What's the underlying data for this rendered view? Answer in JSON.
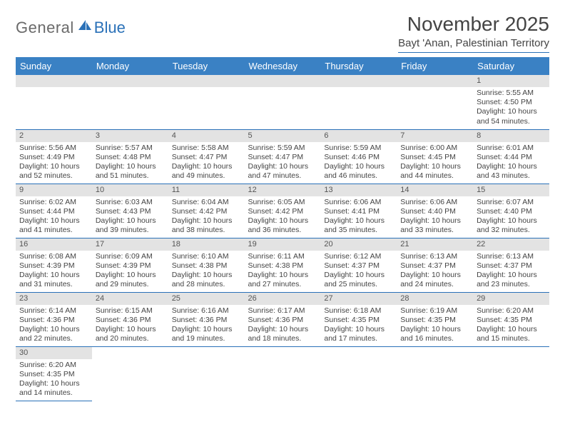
{
  "logo": {
    "main": "General",
    "sub": "Blue"
  },
  "header": {
    "title": "November 2025",
    "location": "Bayt 'Anan, Palestinian Territory"
  },
  "colors": {
    "header_bar": "#3a81c4",
    "rule": "#2a71b8",
    "daynum_bg": "#e3e3e3",
    "logo_gray": "#6a6a6a",
    "logo_blue": "#2a71b8"
  },
  "weekdays": [
    "Sunday",
    "Monday",
    "Tuesday",
    "Wednesday",
    "Thursday",
    "Friday",
    "Saturday"
  ],
  "grid": [
    [
      {
        "empty": true
      },
      {
        "empty": true
      },
      {
        "empty": true
      },
      {
        "empty": true
      },
      {
        "empty": true
      },
      {
        "empty": true
      },
      {
        "day": "1",
        "sunrise": "Sunrise: 5:55 AM",
        "sunset": "Sunset: 4:50 PM",
        "daylight": "Daylight: 10 hours and 54 minutes."
      }
    ],
    [
      {
        "day": "2",
        "sunrise": "Sunrise: 5:56 AM",
        "sunset": "Sunset: 4:49 PM",
        "daylight": "Daylight: 10 hours and 52 minutes."
      },
      {
        "day": "3",
        "sunrise": "Sunrise: 5:57 AM",
        "sunset": "Sunset: 4:48 PM",
        "daylight": "Daylight: 10 hours and 51 minutes."
      },
      {
        "day": "4",
        "sunrise": "Sunrise: 5:58 AM",
        "sunset": "Sunset: 4:47 PM",
        "daylight": "Daylight: 10 hours and 49 minutes."
      },
      {
        "day": "5",
        "sunrise": "Sunrise: 5:59 AM",
        "sunset": "Sunset: 4:47 PM",
        "daylight": "Daylight: 10 hours and 47 minutes."
      },
      {
        "day": "6",
        "sunrise": "Sunrise: 5:59 AM",
        "sunset": "Sunset: 4:46 PM",
        "daylight": "Daylight: 10 hours and 46 minutes."
      },
      {
        "day": "7",
        "sunrise": "Sunrise: 6:00 AM",
        "sunset": "Sunset: 4:45 PM",
        "daylight": "Daylight: 10 hours and 44 minutes."
      },
      {
        "day": "8",
        "sunrise": "Sunrise: 6:01 AM",
        "sunset": "Sunset: 4:44 PM",
        "daylight": "Daylight: 10 hours and 43 minutes."
      }
    ],
    [
      {
        "day": "9",
        "sunrise": "Sunrise: 6:02 AM",
        "sunset": "Sunset: 4:44 PM",
        "daylight": "Daylight: 10 hours and 41 minutes."
      },
      {
        "day": "10",
        "sunrise": "Sunrise: 6:03 AM",
        "sunset": "Sunset: 4:43 PM",
        "daylight": "Daylight: 10 hours and 39 minutes."
      },
      {
        "day": "11",
        "sunrise": "Sunrise: 6:04 AM",
        "sunset": "Sunset: 4:42 PM",
        "daylight": "Daylight: 10 hours and 38 minutes."
      },
      {
        "day": "12",
        "sunrise": "Sunrise: 6:05 AM",
        "sunset": "Sunset: 4:42 PM",
        "daylight": "Daylight: 10 hours and 36 minutes."
      },
      {
        "day": "13",
        "sunrise": "Sunrise: 6:06 AM",
        "sunset": "Sunset: 4:41 PM",
        "daylight": "Daylight: 10 hours and 35 minutes."
      },
      {
        "day": "14",
        "sunrise": "Sunrise: 6:06 AM",
        "sunset": "Sunset: 4:40 PM",
        "daylight": "Daylight: 10 hours and 33 minutes."
      },
      {
        "day": "15",
        "sunrise": "Sunrise: 6:07 AM",
        "sunset": "Sunset: 4:40 PM",
        "daylight": "Daylight: 10 hours and 32 minutes."
      }
    ],
    [
      {
        "day": "16",
        "sunrise": "Sunrise: 6:08 AM",
        "sunset": "Sunset: 4:39 PM",
        "daylight": "Daylight: 10 hours and 31 minutes."
      },
      {
        "day": "17",
        "sunrise": "Sunrise: 6:09 AM",
        "sunset": "Sunset: 4:39 PM",
        "daylight": "Daylight: 10 hours and 29 minutes."
      },
      {
        "day": "18",
        "sunrise": "Sunrise: 6:10 AM",
        "sunset": "Sunset: 4:38 PM",
        "daylight": "Daylight: 10 hours and 28 minutes."
      },
      {
        "day": "19",
        "sunrise": "Sunrise: 6:11 AM",
        "sunset": "Sunset: 4:38 PM",
        "daylight": "Daylight: 10 hours and 27 minutes."
      },
      {
        "day": "20",
        "sunrise": "Sunrise: 6:12 AM",
        "sunset": "Sunset: 4:37 PM",
        "daylight": "Daylight: 10 hours and 25 minutes."
      },
      {
        "day": "21",
        "sunrise": "Sunrise: 6:13 AM",
        "sunset": "Sunset: 4:37 PM",
        "daylight": "Daylight: 10 hours and 24 minutes."
      },
      {
        "day": "22",
        "sunrise": "Sunrise: 6:13 AM",
        "sunset": "Sunset: 4:37 PM",
        "daylight": "Daylight: 10 hours and 23 minutes."
      }
    ],
    [
      {
        "day": "23",
        "sunrise": "Sunrise: 6:14 AM",
        "sunset": "Sunset: 4:36 PM",
        "daylight": "Daylight: 10 hours and 22 minutes."
      },
      {
        "day": "24",
        "sunrise": "Sunrise: 6:15 AM",
        "sunset": "Sunset: 4:36 PM",
        "daylight": "Daylight: 10 hours and 20 minutes."
      },
      {
        "day": "25",
        "sunrise": "Sunrise: 6:16 AM",
        "sunset": "Sunset: 4:36 PM",
        "daylight": "Daylight: 10 hours and 19 minutes."
      },
      {
        "day": "26",
        "sunrise": "Sunrise: 6:17 AM",
        "sunset": "Sunset: 4:36 PM",
        "daylight": "Daylight: 10 hours and 18 minutes."
      },
      {
        "day": "27",
        "sunrise": "Sunrise: 6:18 AM",
        "sunset": "Sunset: 4:35 PM",
        "daylight": "Daylight: 10 hours and 17 minutes."
      },
      {
        "day": "28",
        "sunrise": "Sunrise: 6:19 AM",
        "sunset": "Sunset: 4:35 PM",
        "daylight": "Daylight: 10 hours and 16 minutes."
      },
      {
        "day": "29",
        "sunrise": "Sunrise: 6:20 AM",
        "sunset": "Sunset: 4:35 PM",
        "daylight": "Daylight: 10 hours and 15 minutes."
      }
    ],
    [
      {
        "day": "30",
        "sunrise": "Sunrise: 6:20 AM",
        "sunset": "Sunset: 4:35 PM",
        "daylight": "Daylight: 10 hours and 14 minutes."
      },
      {
        "empty": true,
        "trailing": true
      },
      {
        "empty": true,
        "trailing": true
      },
      {
        "empty": true,
        "trailing": true
      },
      {
        "empty": true,
        "trailing": true
      },
      {
        "empty": true,
        "trailing": true
      },
      {
        "empty": true,
        "trailing": true
      }
    ]
  ]
}
